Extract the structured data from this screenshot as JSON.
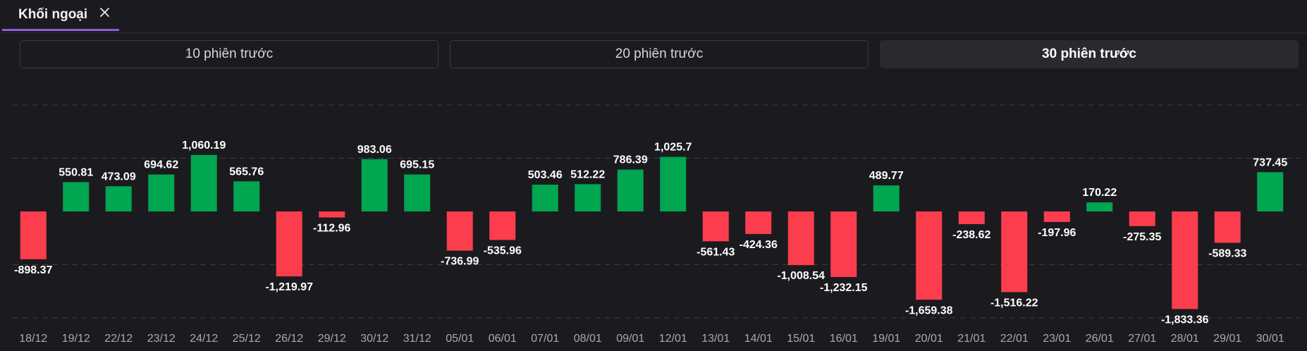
{
  "tab": {
    "label": "Khối ngoại",
    "close_icon": "close-icon"
  },
  "periods": [
    {
      "label": "10 phiên trước",
      "active": false
    },
    {
      "label": "20 phiên trước",
      "active": false
    },
    {
      "label": "30 phiên trước",
      "active": true
    }
  ],
  "colors": {
    "positive": "#00a650",
    "negative": "#fc3d4d",
    "accent": "#8e5cdb"
  },
  "chart_data": {
    "type": "bar",
    "title": "",
    "xlabel": "",
    "ylabel": "",
    "ylim": [
      -2000,
      2000
    ],
    "grid": true,
    "categories": [
      "18/12",
      "19/12",
      "22/12",
      "23/12",
      "24/12",
      "25/12",
      "26/12",
      "29/12",
      "30/12",
      "31/12",
      "05/01",
      "06/01",
      "07/01",
      "08/01",
      "09/01",
      "12/01",
      "13/01",
      "14/01",
      "15/01",
      "16/01",
      "19/01",
      "20/01",
      "21/01",
      "22/01",
      "23/01",
      "26/01",
      "27/01",
      "28/01",
      "29/01",
      "30/01"
    ],
    "values": [
      -898.37,
      550.81,
      473.09,
      694.62,
      1060.19,
      565.76,
      -1219.97,
      -112.96,
      983.06,
      695.15,
      -736.99,
      -535.96,
      503.46,
      512.22,
      786.39,
      1025.7,
      -561.43,
      -424.36,
      -1008.54,
      -1232.15,
      489.77,
      -1659.38,
      -238.62,
      -1516.22,
      -197.96,
      170.22,
      -275.35,
      -1833.36,
      -589.33,
      737.45
    ],
    "value_labels": [
      "-898.37",
      "550.81",
      "473.09",
      "694.62",
      "1,060.19",
      "565.76",
      "-1,219.97",
      "-112.96",
      "983.06",
      "695.15",
      "-736.99",
      "-535.96",
      "503.46",
      "512.22",
      "786.39",
      "1,025.7",
      "-561.43",
      "-424.36",
      "-1,008.54",
      "-1,232.15",
      "489.77",
      "-1,659.38",
      "-238.62",
      "-1,516.22",
      "-197.96",
      "170.22",
      "-275.35",
      "-1,833.36",
      "-589.33",
      "737.45"
    ]
  }
}
